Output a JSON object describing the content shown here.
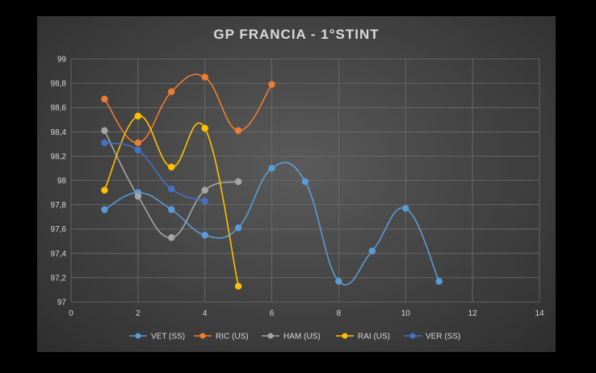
{
  "chart_data": {
    "type": "line",
    "title": "GP FRANCIA - 1°STINT",
    "xlim": [
      0,
      14
    ],
    "ylim": [
      97,
      99
    ],
    "x_ticks": [
      "0",
      "2",
      "4",
      "6",
      "8",
      "10",
      "12",
      "14"
    ],
    "y_ticks": [
      "97",
      "97,2",
      "97,4",
      "97,6",
      "97,8",
      "98",
      "98,2",
      "98,4",
      "98,6",
      "98,8",
      "99"
    ],
    "grid": true,
    "smooth": true,
    "legend_position": "bottom",
    "series": [
      {
        "name": "VET (SS)",
        "color": "#5b9bd5",
        "x": [
          1,
          2,
          3,
          4,
          5,
          6,
          7,
          8,
          9,
          10,
          11
        ],
        "y": [
          97.76,
          97.9,
          97.76,
          97.55,
          97.61,
          98.1,
          97.99,
          97.17,
          97.42,
          97.77,
          97.17
        ]
      },
      {
        "name": "RIC (US)",
        "color": "#ed7d31",
        "x": [
          1,
          2,
          3,
          4,
          5,
          6
        ],
        "y": [
          98.67,
          98.31,
          98.73,
          98.85,
          98.41,
          98.79
        ]
      },
      {
        "name": "HAM (US)",
        "color": "#a5a5a5",
        "x": [
          1,
          2,
          3,
          4,
          5
        ],
        "y": [
          98.41,
          97.87,
          97.53,
          97.92,
          97.99
        ]
      },
      {
        "name": "RAI (US)",
        "color": "#ffc000",
        "x": [
          1,
          2,
          3,
          4,
          5
        ],
        "y": [
          97.92,
          98.53,
          98.11,
          98.43,
          97.13
        ]
      },
      {
        "name": "VER (SS)",
        "color": "#4472c4",
        "x": [
          1,
          2,
          3,
          4
        ],
        "y": [
          98.31,
          98.25,
          97.93,
          97.83
        ]
      }
    ]
  }
}
